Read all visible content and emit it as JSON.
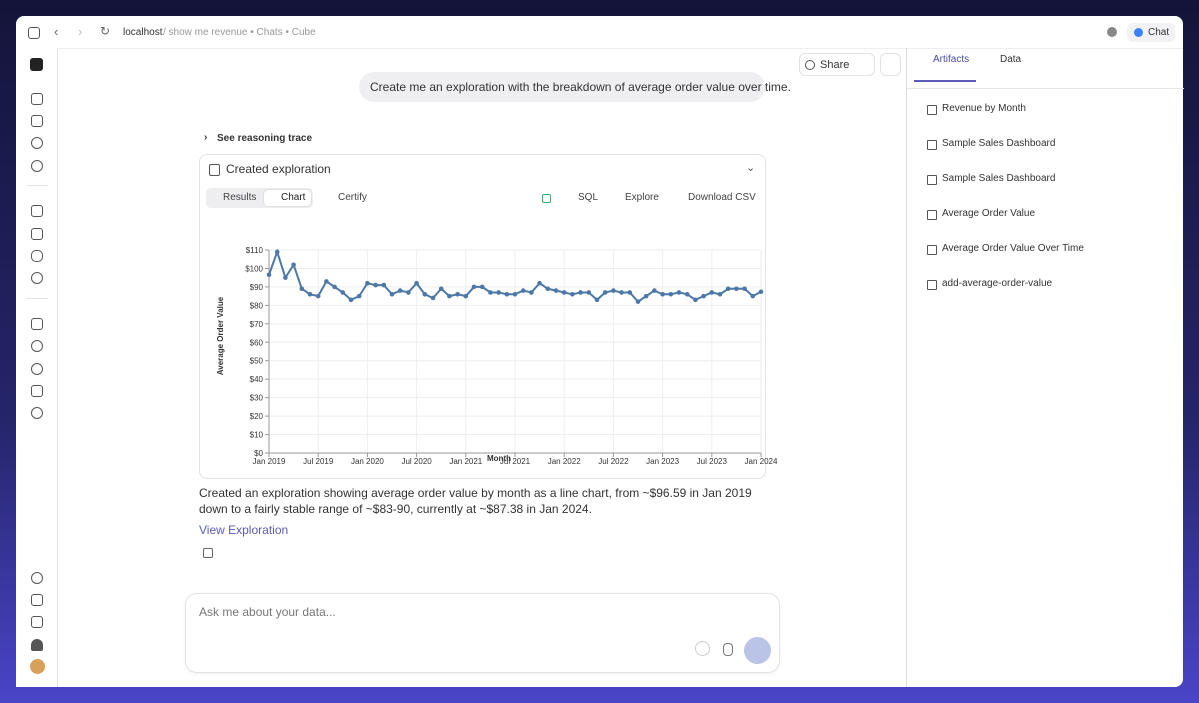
{
  "browser": {
    "url": "localhost",
    "breadcrumb": "/ show me revenue • Chats • Cube",
    "chat_button": "Chat"
  },
  "toolbar": {
    "share": "Share"
  },
  "conversation": {
    "user_message": "Create me an exploration with the breakdown of average order value over time.",
    "reasoning_toggle": "See reasoning trace",
    "card_title": "Created exploration",
    "tabs": [
      "Results",
      "Chart"
    ],
    "actions": [
      "Certify",
      "SQL",
      "Explore",
      "Download CSV"
    ],
    "response": "Created an exploration showing average order value by month as a line chart, from ~$96.59 in Jan 2019 down to a fairly stable range of ~$83-90, currently at ~$87.38 in Jan 2024.",
    "link": "View Exploration"
  },
  "chart_data": {
    "type": "line",
    "x_label": "Month",
    "y_label": "Average Order Value",
    "categories": [
      "Jan 2019",
      null,
      null,
      null,
      null,
      null,
      "Jul 2019",
      null,
      null,
      null,
      null,
      null,
      "Jan 2020",
      null,
      null,
      null,
      null,
      null,
      "Jul 2020",
      null,
      null,
      null,
      null,
      null,
      "Jan 2021",
      null,
      null,
      null,
      null,
      null,
      "Jul 2021",
      null,
      null,
      null,
      null,
      null,
      "Jan 2022",
      null,
      null,
      null,
      null,
      null,
      "Jul 2022",
      null,
      null,
      null,
      null,
      null,
      "Jan 2023",
      null,
      null,
      null,
      null,
      null,
      "Jul 2023",
      null,
      null,
      null,
      null,
      null,
      "Jan 2024"
    ],
    "values": [
      96.59,
      109,
      95,
      102,
      89,
      86,
      85,
      93,
      90,
      87,
      83,
      85,
      92,
      91,
      91,
      86,
      88,
      87,
      92,
      86,
      84,
      89,
      85,
      86,
      85,
      90,
      90,
      87,
      87,
      86,
      86,
      88,
      87,
      92,
      89,
      88,
      87,
      86,
      87,
      87,
      83,
      87,
      88,
      87,
      87,
      82,
      85,
      88,
      86,
      86,
      87,
      86,
      83,
      85,
      87,
      86,
      89,
      89,
      89,
      85,
      87.38
    ],
    "color": "#4c78a8",
    "ylim": [
      0,
      110
    ],
    "yticks": [
      {
        "value": 0,
        "label": "$0"
      },
      {
        "value": 10,
        "label": "$10"
      },
      {
        "value": 20,
        "label": "$20"
      },
      {
        "value": 30,
        "label": "$30"
      },
      {
        "value": 40,
        "label": "$40"
      },
      {
        "value": 50,
        "label": "$50"
      },
      {
        "value": 60,
        "label": "$60"
      },
      {
        "value": 70,
        "label": "$70"
      },
      {
        "value": 80,
        "label": "$80"
      },
      {
        "value": 90,
        "label": "$90"
      },
      {
        "value": 100,
        "label": "$100"
      },
      {
        "value": 110,
        "label": "$110"
      }
    ],
    "grid": true
  },
  "composer": {
    "placeholder": "Ask me about your data..."
  },
  "side_panel": {
    "tabs": [
      "Artifacts",
      "Data"
    ],
    "artifacts": [
      "Revenue by Month",
      "Sample Sales Dashboard",
      "Sample Sales Dashboard",
      "Average Order Value",
      "Average Order Value Over Time",
      "add-average-order-value"
    ]
  }
}
